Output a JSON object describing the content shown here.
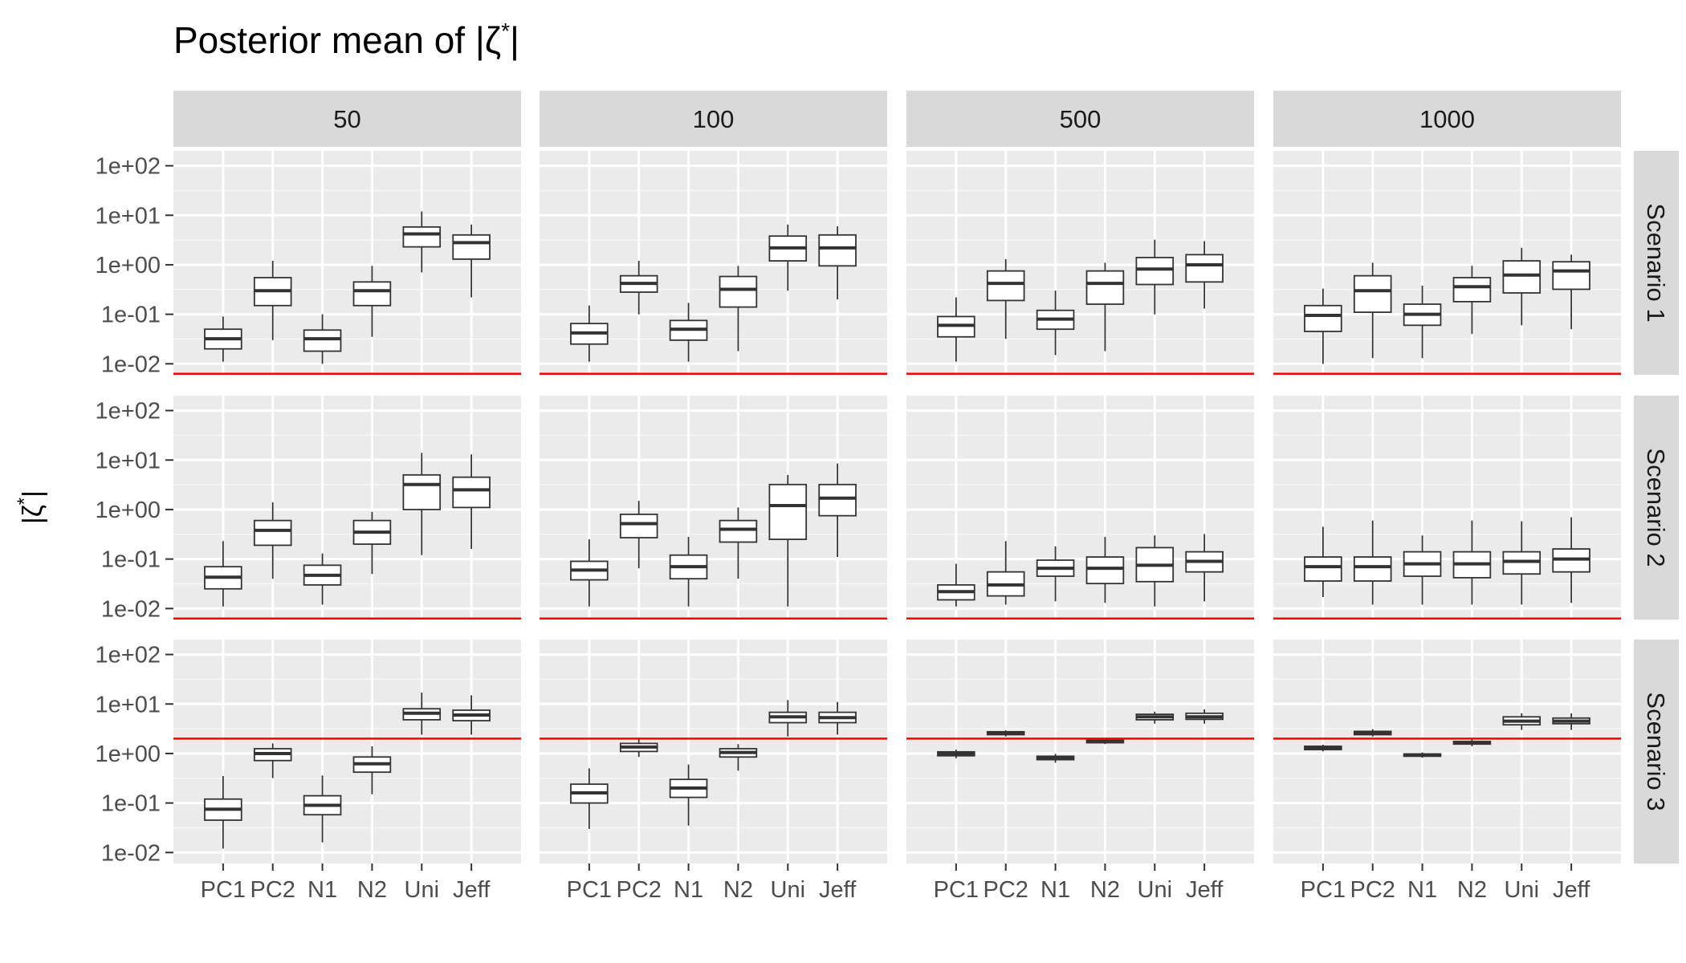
{
  "chart_data": {
    "type": "boxplot",
    "title": "Posterior mean of |ζ*|",
    "ylabel": "|ζ*|",
    "xlabel": "",
    "y_scale": "log10",
    "ylim": [
      0.006,
      200
    ],
    "y_ticks": [
      {
        "value": 0.01,
        "label": "1e-02"
      },
      {
        "value": 0.1,
        "label": "1e-01"
      },
      {
        "value": 1,
        "label": "1e+00"
      },
      {
        "value": 10,
        "label": "1e+01"
      },
      {
        "value": 100,
        "label": "1e+02"
      }
    ],
    "categories": [
      "PC1",
      "PC2",
      "N1",
      "N2",
      "Uni",
      "Jeff"
    ],
    "columns": [
      "50",
      "100",
      "500",
      "1000"
    ],
    "rows": [
      {
        "name": "Scenario 1",
        "reference_line": 0.0063,
        "panels": [
          [
            [
              0.011,
              0.02,
              0.032,
              0.05,
              0.09
            ],
            [
              0.03,
              0.15,
              0.3,
              0.55,
              1.2
            ],
            [
              0.01,
              0.018,
              0.032,
              0.048,
              0.1
            ],
            [
              0.035,
              0.15,
              0.3,
              0.45,
              0.95
            ],
            [
              0.7,
              2.3,
              4.2,
              5.8,
              12
            ],
            [
              0.22,
              1.3,
              2.8,
              4.0,
              6.5
            ]
          ],
          [
            [
              0.011,
              0.025,
              0.042,
              0.065,
              0.15
            ],
            [
              0.1,
              0.28,
              0.42,
              0.6,
              1.2
            ],
            [
              0.011,
              0.03,
              0.05,
              0.075,
              0.17
            ],
            [
              0.018,
              0.14,
              0.32,
              0.58,
              0.95
            ],
            [
              0.3,
              1.2,
              2.2,
              3.8,
              6.5
            ],
            [
              0.2,
              0.95,
              2.2,
              4.0,
              6.0
            ]
          ],
          [
            [
              0.011,
              0.035,
              0.06,
              0.09,
              0.22
            ],
            [
              0.032,
              0.19,
              0.42,
              0.75,
              1.3
            ],
            [
              0.015,
              0.05,
              0.08,
              0.12,
              0.3
            ],
            [
              0.018,
              0.16,
              0.42,
              0.75,
              1.1
            ],
            [
              0.1,
              0.4,
              0.82,
              1.4,
              3.2
            ],
            [
              0.13,
              0.45,
              1.0,
              1.6,
              3.0
            ]
          ],
          [
            [
              0.01,
              0.045,
              0.095,
              0.15,
              0.33
            ],
            [
              0.013,
              0.11,
              0.3,
              0.6,
              1.1
            ],
            [
              0.013,
              0.06,
              0.1,
              0.16,
              0.38
            ],
            [
              0.04,
              0.18,
              0.36,
              0.55,
              0.95
            ],
            [
              0.06,
              0.27,
              0.62,
              1.2,
              2.2
            ],
            [
              0.05,
              0.32,
              0.75,
              1.15,
              1.6
            ]
          ]
        ]
      },
      {
        "name": "Scenario 2",
        "reference_line": 0.0063,
        "panels": [
          [
            [
              0.011,
              0.025,
              0.043,
              0.07,
              0.23
            ],
            [
              0.04,
              0.19,
              0.38,
              0.6,
              1.4
            ],
            [
              0.012,
              0.03,
              0.047,
              0.075,
              0.13
            ],
            [
              0.05,
              0.2,
              0.35,
              0.6,
              0.9
            ],
            [
              0.12,
              1.0,
              3.2,
              5.0,
              14
            ],
            [
              0.16,
              1.1,
              2.5,
              4.5,
              13
            ]
          ],
          [
            [
              0.011,
              0.038,
              0.06,
              0.09,
              0.25
            ],
            [
              0.065,
              0.27,
              0.52,
              0.8,
              1.5
            ],
            [
              0.011,
              0.04,
              0.07,
              0.12,
              0.28
            ],
            [
              0.04,
              0.22,
              0.4,
              0.6,
              1.1
            ],
            [
              0.011,
              0.25,
              1.2,
              3.2,
              5.0
            ],
            [
              0.11,
              0.75,
              1.7,
              3.2,
              8.5
            ]
          ],
          [
            [
              0.011,
              0.015,
              0.022,
              0.03,
              0.08
            ],
            [
              0.012,
              0.018,
              0.03,
              0.055,
              0.23
            ],
            [
              0.014,
              0.045,
              0.065,
              0.095,
              0.18
            ],
            [
              0.013,
              0.032,
              0.065,
              0.11,
              0.28
            ],
            [
              0.011,
              0.035,
              0.075,
              0.17,
              0.3
            ],
            [
              0.014,
              0.055,
              0.09,
              0.14,
              0.32
            ]
          ],
          [
            [
              0.017,
              0.036,
              0.07,
              0.11,
              0.45
            ],
            [
              0.012,
              0.036,
              0.07,
              0.11,
              0.6
            ],
            [
              0.012,
              0.045,
              0.08,
              0.14,
              0.3
            ],
            [
              0.012,
              0.042,
              0.08,
              0.14,
              0.6
            ],
            [
              0.012,
              0.05,
              0.09,
              0.14,
              0.58
            ],
            [
              0.013,
              0.055,
              0.1,
              0.16,
              0.7
            ]
          ]
        ]
      },
      {
        "name": "Scenario 3",
        "reference_line": 2.0,
        "panels": [
          [
            [
              0.012,
              0.045,
              0.075,
              0.12,
              0.35
            ],
            [
              0.32,
              0.72,
              1.0,
              1.25,
              1.6
            ],
            [
              0.016,
              0.058,
              0.09,
              0.14,
              0.36
            ],
            [
              0.15,
              0.42,
              0.62,
              0.85,
              1.4
            ],
            [
              2.4,
              4.8,
              6.5,
              8.0,
              17
            ],
            [
              2.4,
              4.6,
              6.0,
              7.5,
              15
            ]
          ],
          [
            [
              0.03,
              0.1,
              0.16,
              0.24,
              0.5
            ],
            [
              0.85,
              1.1,
              1.35,
              1.6,
              2.1
            ],
            [
              0.035,
              0.13,
              0.2,
              0.3,
              0.6
            ],
            [
              0.45,
              0.85,
              1.05,
              1.25,
              1.55
            ],
            [
              2.2,
              4.2,
              5.5,
              6.8,
              12
            ],
            [
              2.4,
              4.2,
              5.3,
              6.8,
              11
            ]
          ],
          [
            [
              0.8,
              0.9,
              1.0,
              1.08,
              1.2
            ],
            [
              2.2,
              2.4,
              2.55,
              2.75,
              2.95
            ],
            [
              0.65,
              0.75,
              0.82,
              0.88,
              0.98
            ],
            [
              1.55,
              1.65,
              1.75,
              1.85,
              2.0
            ],
            [
              4.0,
              4.8,
              5.5,
              6.2,
              7.0
            ],
            [
              4.0,
              4.9,
              5.5,
              6.5,
              7.8
            ]
          ],
          [
            [
              1.1,
              1.2,
              1.3,
              1.4,
              1.5
            ],
            [
              2.2,
              2.4,
              2.6,
              2.8,
              3.1
            ],
            [
              0.82,
              0.88,
              0.93,
              0.98,
              1.05
            ],
            [
              1.4,
              1.55,
              1.65,
              1.75,
              1.95
            ],
            [
              3.0,
              3.8,
              4.5,
              5.5,
              6.5
            ],
            [
              3.0,
              4.0,
              4.5,
              5.2,
              6.5
            ]
          ]
        ]
      }
    ]
  }
}
